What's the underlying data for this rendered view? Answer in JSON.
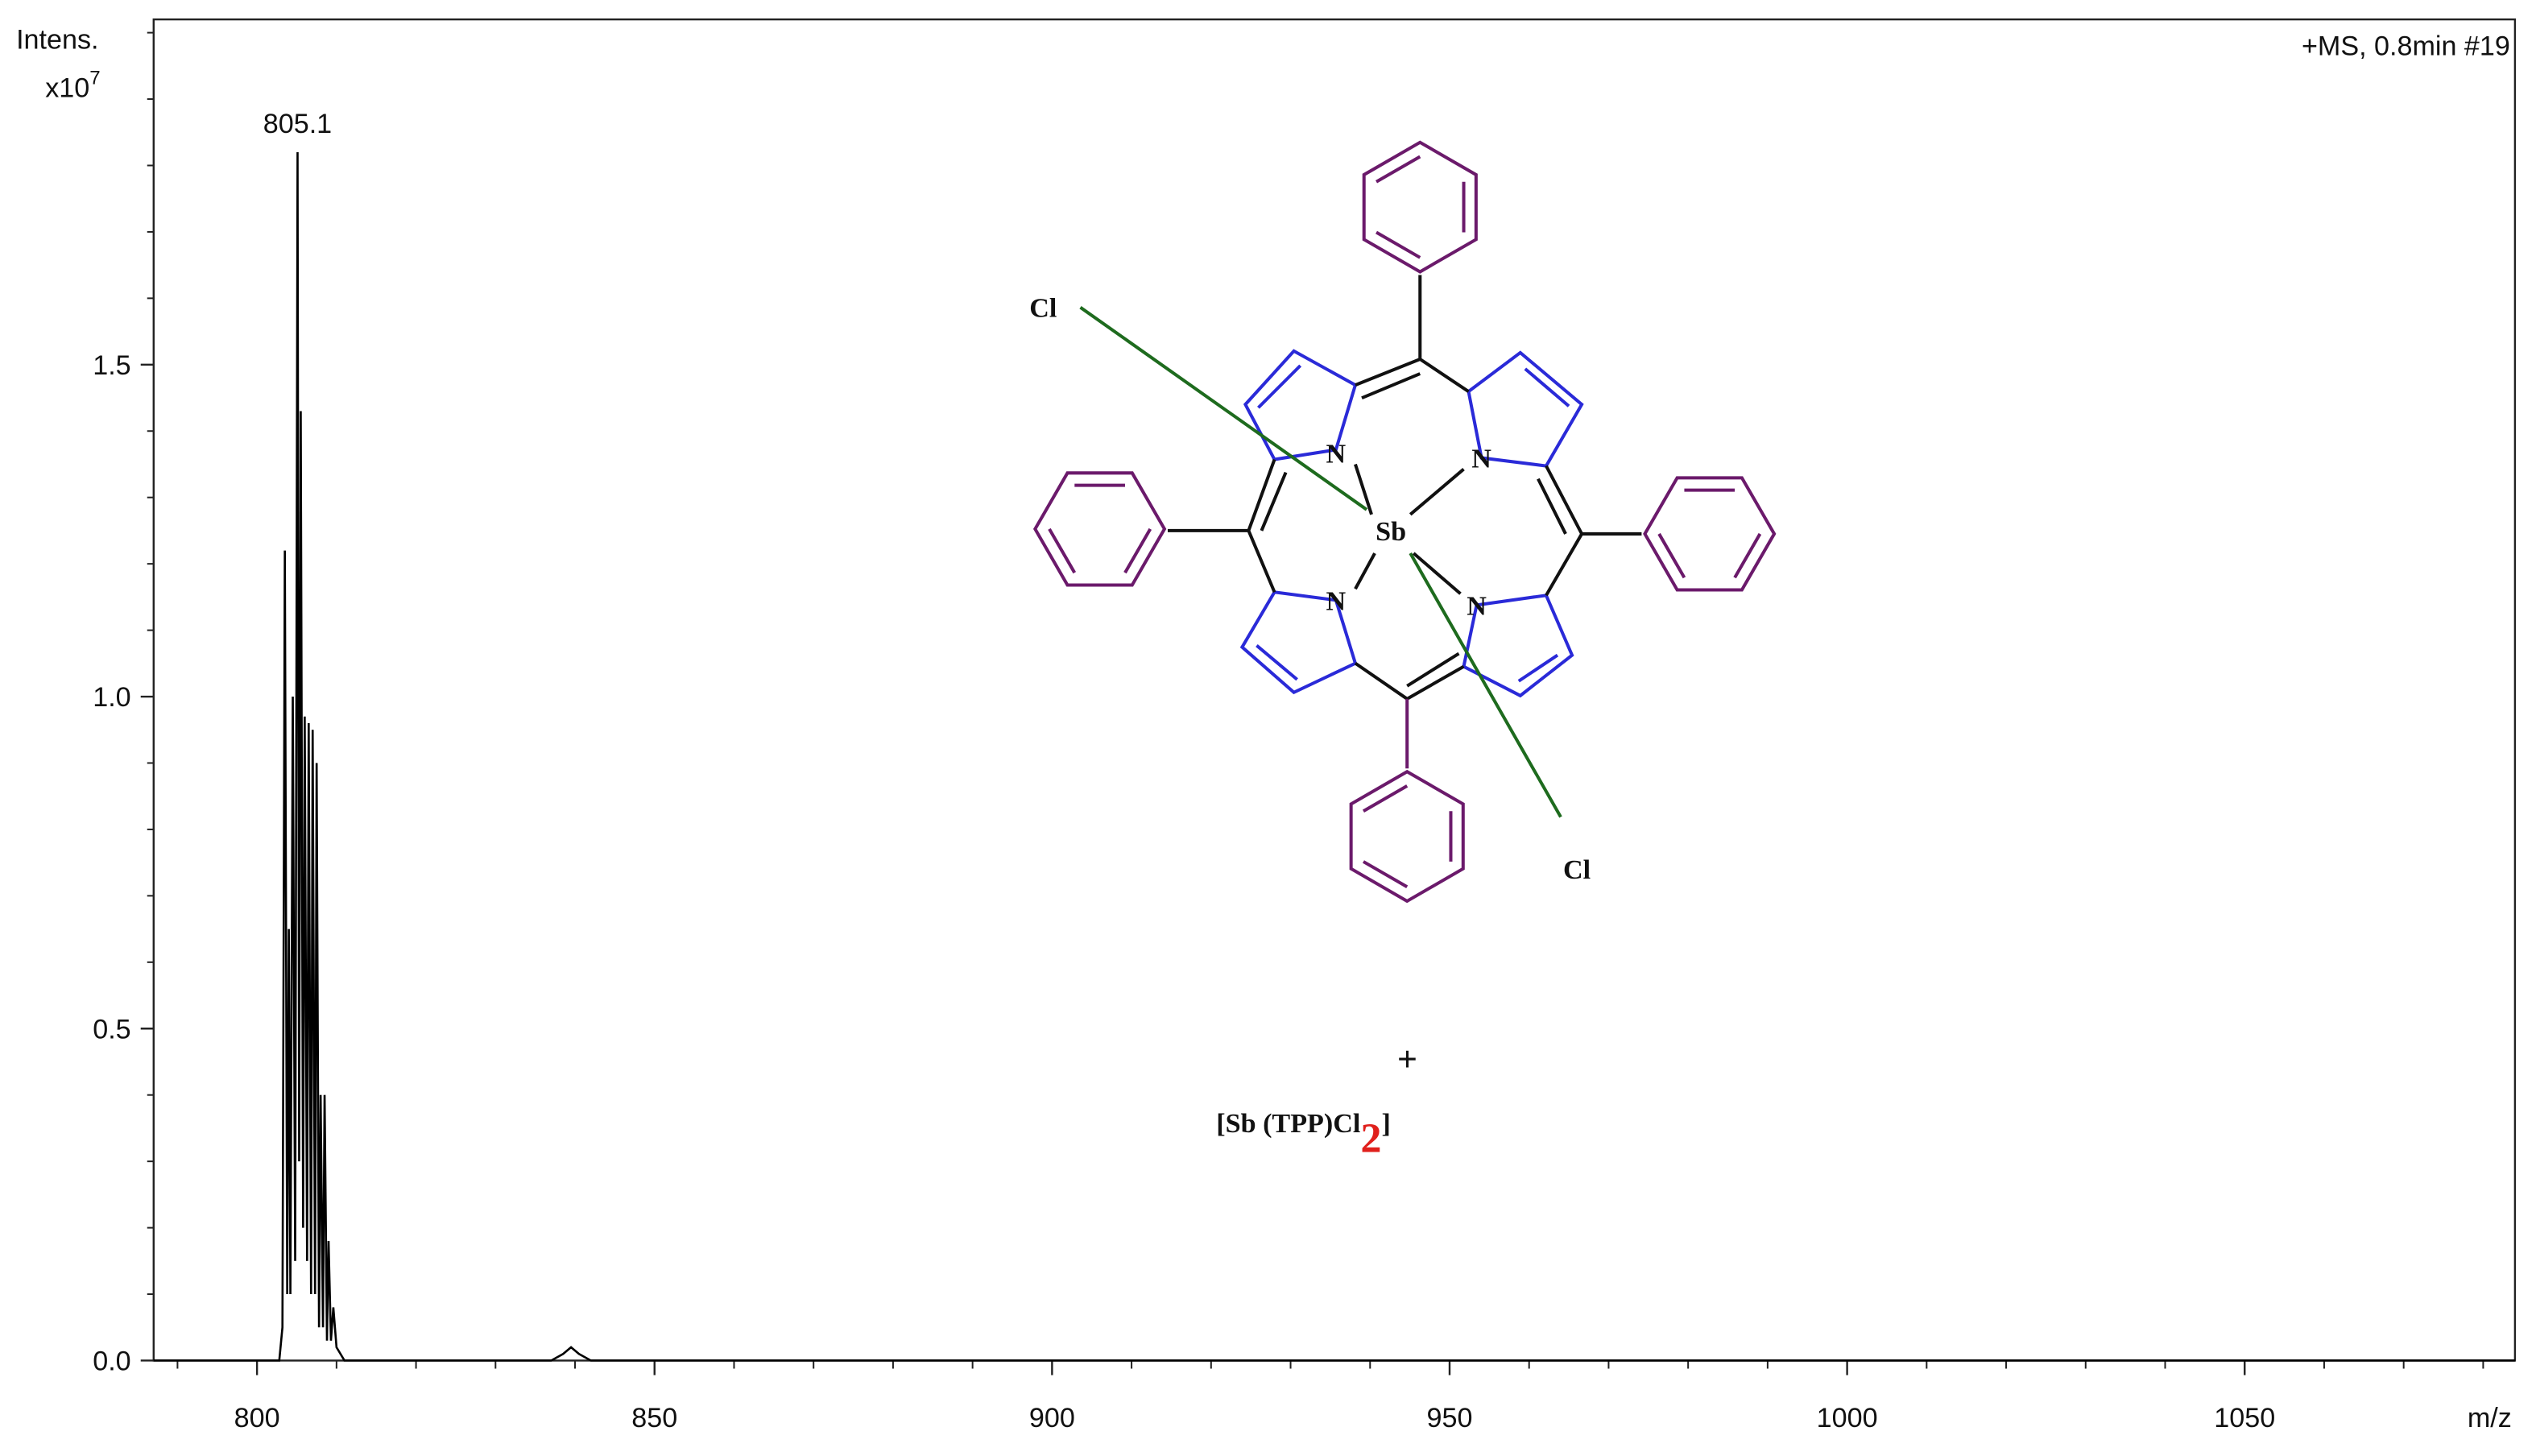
{
  "chart_data": {
    "type": "line",
    "header": "+MS, 0.8min #19",
    "y_label": "Intens.",
    "y_multiplier": "x10",
    "y_exponent": "7",
    "x_label": "m/z",
    "peak_label": "805.1",
    "series": [
      {
        "color": "#000000",
        "x": [
          787,
          802.8,
          803.2,
          803.5,
          803.8,
          804.0,
          804.2,
          804.5,
          804.8,
          805.1,
          805.3,
          805.5,
          805.8,
          806.0,
          806.3,
          806.5,
          806.8,
          807.0,
          807.3,
          807.5,
          807.8,
          808.0,
          808.3,
          808.5,
          808.8,
          809.0,
          809.3,
          809.6,
          810.0,
          811,
          837,
          838.5,
          839.5,
          840.5,
          842,
          1084
        ],
        "values": [
          0,
          0,
          0.05,
          1.22,
          0.1,
          0.65,
          0.1,
          1.0,
          0.15,
          1.82,
          0.3,
          1.43,
          0.2,
          0.97,
          0.15,
          0.96,
          0.1,
          0.95,
          0.1,
          0.9,
          0.05,
          0.4,
          0.05,
          0.4,
          0.03,
          0.18,
          0.03,
          0.08,
          0.02,
          0,
          0,
          0.01,
          0.02,
          0.01,
          0,
          0
        ]
      }
    ],
    "xlim": [
      787,
      1084
    ],
    "xticks": [
      800,
      850,
      900,
      950,
      1000,
      1050
    ],
    "x_minor_ticks": [
      790,
      810,
      820,
      830,
      840,
      860,
      870,
      880,
      890,
      910,
      920,
      930,
      940,
      960,
      970,
      980,
      990,
      1010,
      1020,
      1030,
      1040,
      1060,
      1070,
      1080
    ],
    "ylim": [
      0,
      2.02
    ],
    "yticks": [
      {
        "value": 0,
        "label": "0.0"
      },
      0.5,
      {
        "value": 1,
        "label": "1.0"
      },
      1.5
    ],
    "y_minor_ticks": [
      0.1,
      0.2,
      0.3,
      0.4,
      0.6,
      0.7,
      0.8,
      0.9,
      1.1,
      1.2,
      1.3,
      1.4,
      1.6,
      1.7,
      1.8,
      1.9,
      2.0
    ]
  },
  "structure": {
    "metal": "Sb",
    "ligand_1": "Cl",
    "ligand_2": "Cl",
    "nitrogen_1": "N",
    "nitrogen_2": "N",
    "nitrogen_3": "N",
    "nitrogen_4": "N",
    "formula": {
      "main": "[Sb (TPP)Cl",
      "subscript": "2",
      "close": "]",
      "charge": "+"
    }
  }
}
